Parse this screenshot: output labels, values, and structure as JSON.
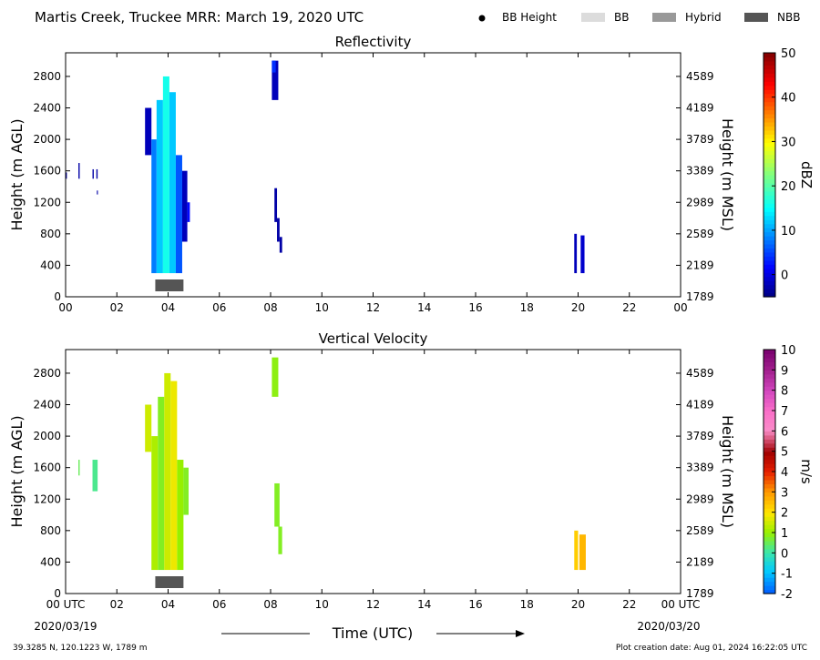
{
  "figure": {
    "title": "Martis Creek, Truckee MRR:  March 19, 2020 UTC",
    "legend": [
      {
        "label": "BB Height",
        "kind": "dot",
        "color": "#000000"
      },
      {
        "label": "BB",
        "kind": "box",
        "color": "#dcdcdc"
      },
      {
        "label": "Hybrid",
        "kind": "box",
        "color": "#999999"
      },
      {
        "label": "NBB",
        "kind": "box",
        "color": "#555555"
      }
    ],
    "xlabel": "Time (UTC)",
    "start_date": "2020/03/19",
    "end_date": "2020/03/20",
    "location": "39.3285 N, 120.1223 W, 1789 m",
    "creation": "Plot creation date: Aug 01, 2024 16:22:05 UTC"
  },
  "chart_data": [
    {
      "type": "heatmap",
      "title": "Reflectivity",
      "ylabel": "Height (m AGL)",
      "y2label": "Height (m MSL)",
      "xlim": [
        0,
        24
      ],
      "ylim": [
        0,
        3100
      ],
      "x_ticks": [
        "00",
        "02",
        "04",
        "06",
        "08",
        "10",
        "12",
        "14",
        "16",
        "18",
        "20",
        "22",
        "00"
      ],
      "y_ticks": [
        0,
        400,
        800,
        1200,
        1600,
        2000,
        2400,
        2800
      ],
      "y2_ticks": [
        1789,
        2189,
        2589,
        2989,
        3389,
        3789,
        4189,
        4589
      ],
      "colorbar": {
        "label": "dBZ",
        "min": -5,
        "max": 50,
        "ticks": [
          0,
          10,
          20,
          30,
          40,
          50
        ]
      },
      "bright_band": [
        {
          "start": 3.5,
          "end": 4.6,
          "type": "NBB"
        }
      ],
      "features": [
        {
          "t0": 0.0,
          "t1": 0.05,
          "h0": 1500,
          "h1": 1580,
          "value": -3
        },
        {
          "t0": 0.5,
          "t1": 0.55,
          "h0": 1500,
          "h1": 1700,
          "value": -3
        },
        {
          "t0": 1.05,
          "t1": 1.1,
          "h0": 1500,
          "h1": 1620,
          "value": -3
        },
        {
          "t0": 1.2,
          "t1": 1.25,
          "h0": 1500,
          "h1": 1620,
          "value": -3
        },
        {
          "t0": 1.22,
          "t1": 1.26,
          "h0": 1300,
          "h1": 1350,
          "value": -3
        },
        {
          "t0": 3.1,
          "t1": 3.35,
          "h0": 1800,
          "h1": 2400,
          "value": -2
        },
        {
          "t0": 3.35,
          "t1": 3.55,
          "h0": 300,
          "h1": 2000,
          "value": 8
        },
        {
          "t0": 3.55,
          "t1": 3.8,
          "h0": 300,
          "h1": 2500,
          "value": 12
        },
        {
          "t0": 3.8,
          "t1": 4.05,
          "h0": 300,
          "h1": 2800,
          "value": 16
        },
        {
          "t0": 4.05,
          "t1": 4.3,
          "h0": 300,
          "h1": 2600,
          "value": 12
        },
        {
          "t0": 4.3,
          "t1": 4.55,
          "h0": 300,
          "h1": 1800,
          "value": 6
        },
        {
          "t0": 4.55,
          "t1": 4.75,
          "h0": 700,
          "h1": 1600,
          "value": -2
        },
        {
          "t0": 4.75,
          "t1": 4.85,
          "h0": 950,
          "h1": 1200,
          "value": 2
        },
        {
          "t0": 8.05,
          "t1": 8.3,
          "h0": 2500,
          "h1": 3000,
          "value": -2
        },
        {
          "t0": 8.05,
          "t1": 8.2,
          "h0": 2850,
          "h1": 3000,
          "value": 4
        },
        {
          "t0": 8.15,
          "t1": 8.25,
          "h0": 950,
          "h1": 1380,
          "value": -3
        },
        {
          "t0": 8.25,
          "t1": 8.35,
          "h0": 700,
          "h1": 1000,
          "value": -3
        },
        {
          "t0": 8.35,
          "t1": 8.45,
          "h0": 560,
          "h1": 760,
          "value": -3
        },
        {
          "t0": 19.85,
          "t1": 19.95,
          "h0": 300,
          "h1": 800,
          "value": -2
        },
        {
          "t0": 20.1,
          "t1": 20.25,
          "h0": 300,
          "h1": 780,
          "value": -1
        }
      ]
    },
    {
      "type": "heatmap",
      "title": "Vertical Velocity",
      "ylabel": "Height (m AGL)",
      "y2label": "Height (m MSL)",
      "xlim": [
        0,
        24
      ],
      "ylim": [
        0,
        3100
      ],
      "x_ticks": [
        "00 UTC",
        "02",
        "04",
        "06",
        "08",
        "10",
        "12",
        "14",
        "16",
        "18",
        "20",
        "22",
        "00 UTC"
      ],
      "y_ticks": [
        0,
        400,
        800,
        1200,
        1600,
        2000,
        2400,
        2800
      ],
      "y2_ticks": [
        1789,
        2189,
        2589,
        2989,
        3389,
        3789,
        4189,
        4589
      ],
      "colorbar": {
        "label": "m/s",
        "min": -2,
        "max": 10,
        "ticks": [
          -2,
          -1,
          0,
          1,
          2,
          3,
          4,
          5,
          6,
          7,
          8,
          9,
          10
        ]
      },
      "bright_band": [
        {
          "start": 3.5,
          "end": 4.6,
          "type": "NBB"
        }
      ],
      "features": [
        {
          "t0": 0.5,
          "t1": 0.55,
          "h0": 1500,
          "h1": 1700,
          "value": 0.5
        },
        {
          "t0": 1.05,
          "t1": 1.25,
          "h0": 1300,
          "h1": 1700,
          "value": 0.2
        },
        {
          "t0": 3.1,
          "t1": 3.35,
          "h0": 1800,
          "h1": 2400,
          "value": 1.5
        },
        {
          "t0": 3.35,
          "t1": 3.6,
          "h0": 300,
          "h1": 2000,
          "value": 1.2
        },
        {
          "t0": 3.6,
          "t1": 3.85,
          "h0": 300,
          "h1": 2500,
          "value": 0.8
        },
        {
          "t0": 3.85,
          "t1": 4.1,
          "h0": 300,
          "h1": 2800,
          "value": 1.5
        },
        {
          "t0": 4.1,
          "t1": 4.35,
          "h0": 300,
          "h1": 2700,
          "value": 1.8
        },
        {
          "t0": 4.35,
          "t1": 4.6,
          "h0": 300,
          "h1": 1700,
          "value": 1.0
        },
        {
          "t0": 4.6,
          "t1": 4.8,
          "h0": 1000,
          "h1": 1600,
          "value": 0.8
        },
        {
          "t0": 8.05,
          "t1": 8.3,
          "h0": 2500,
          "h1": 3000,
          "value": 0.9
        },
        {
          "t0": 8.15,
          "t1": 8.35,
          "h0": 850,
          "h1": 1400,
          "value": 0.8
        },
        {
          "t0": 8.3,
          "t1": 8.45,
          "h0": 500,
          "h1": 850,
          "value": 0.8
        },
        {
          "t0": 19.85,
          "t1": 20.0,
          "h0": 300,
          "h1": 800,
          "value": 2.3
        },
        {
          "t0": 20.05,
          "t1": 20.3,
          "h0": 300,
          "h1": 750,
          "value": 2.6
        }
      ]
    }
  ]
}
